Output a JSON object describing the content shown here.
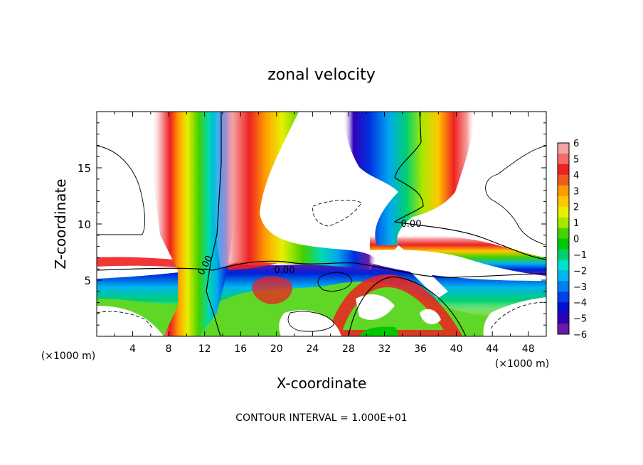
{
  "chart_data": {
    "type": "heatmap",
    "title": "zonal velocity",
    "xlabel": "X-coordinate",
    "ylabel": "Z-coordinate",
    "x_unit_left": "(×1000 m)",
    "x_unit_right": "(×1000 m)",
    "footer": "CONTOUR INTERVAL = 1.000E+01",
    "xlim": [
      0,
      50
    ],
    "ylim": [
      0,
      20
    ],
    "x_ticks": [
      4,
      8,
      12,
      16,
      20,
      24,
      28,
      32,
      36,
      40,
      44,
      48
    ],
    "y_ticks": [
      5,
      10,
      15
    ],
    "contour_labels": [
      "0.00",
      "0.00",
      "0.00"
    ],
    "colorbar": {
      "ticks": [
        "6",
        "5",
        "4",
        "3",
        "2",
        "1",
        "0",
        "−1",
        "−2",
        "−3",
        "−4",
        "−5",
        "−6"
      ],
      "colors": [
        "#f4a2a2",
        "#f56a6a",
        "#ee2020",
        "#f05a1e",
        "#ff9a00",
        "#ffc800",
        "#e8f000",
        "#a8e800",
        "#44d400",
        "#00c800",
        "#00d070",
        "#00e0c8",
        "#00b4f0",
        "#0080f0",
        "#0040e8",
        "#0010d0",
        "#3000b8",
        "#6a1aa8"
      ]
    }
  }
}
